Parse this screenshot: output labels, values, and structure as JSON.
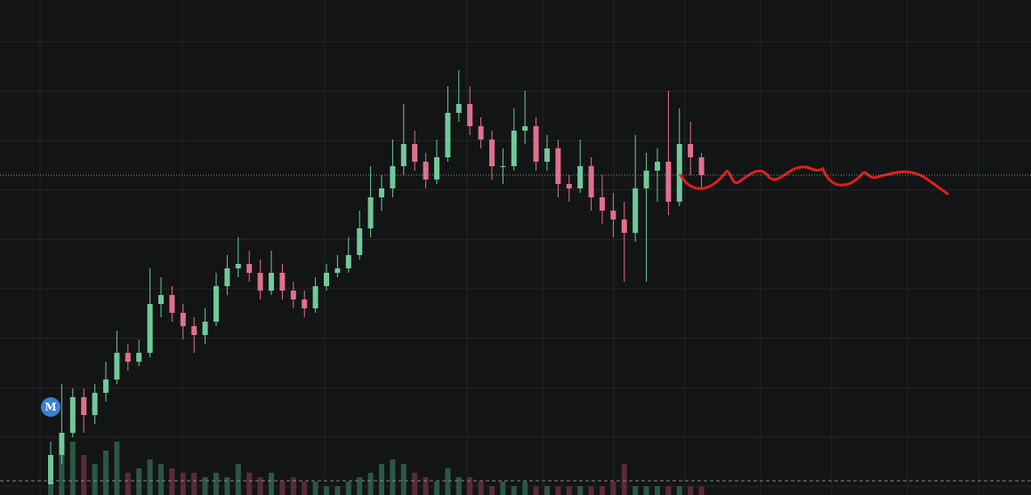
{
  "chart_data": {
    "type": "candlestick",
    "open": [
      12,
      45,
      70,
      110,
      90,
      115,
      130,
      160,
      150,
      160,
      215,
      225,
      205,
      190,
      180,
      195,
      235,
      255,
      260,
      250,
      230,
      250,
      230,
      220,
      210,
      235,
      250,
      255,
      270,
      300,
      335,
      345,
      370,
      395,
      375,
      355,
      380,
      430,
      440,
      415,
      400,
      370,
      370,
      410,
      415,
      375,
      390,
      350,
      345,
      370,
      335,
      320,
      310,
      295,
      345,
      365,
      375,
      330,
      395,
      380
    ],
    "high": [
      60,
      125,
      120,
      120,
      125,
      150,
      185,
      170,
      175,
      255,
      245,
      235,
      215,
      200,
      210,
      250,
      270,
      290,
      275,
      265,
      275,
      260,
      240,
      230,
      245,
      260,
      270,
      290,
      320,
      370,
      360,
      400,
      440,
      410,
      385,
      400,
      460,
      478,
      460,
      425,
      410,
      390,
      435,
      455,
      425,
      405,
      400,
      360,
      400,
      380,
      360,
      340,
      330,
      405,
      385,
      390,
      455,
      435,
      420,
      385
    ],
    "low": [
      12,
      35,
      65,
      70,
      80,
      105,
      125,
      140,
      145,
      155,
      200,
      195,
      175,
      160,
      170,
      190,
      225,
      245,
      240,
      220,
      225,
      220,
      210,
      200,
      205,
      230,
      245,
      250,
      265,
      290,
      320,
      335,
      360,
      365,
      345,
      350,
      375,
      420,
      405,
      390,
      355,
      350,
      365,
      395,
      365,
      365,
      335,
      330,
      340,
      320,
      305,
      290,
      240,
      285,
      240,
      330,
      315,
      325,
      360,
      345
    ],
    "close": [
      45,
      70,
      110,
      90,
      115,
      130,
      160,
      150,
      160,
      215,
      225,
      205,
      190,
      180,
      195,
      235,
      255,
      260,
      250,
      230,
      250,
      230,
      220,
      210,
      235,
      250,
      255,
      270,
      300,
      335,
      345,
      370,
      395,
      375,
      355,
      380,
      430,
      440,
      415,
      400,
      370,
      370,
      410,
      415,
      375,
      390,
      350,
      345,
      370,
      335,
      320,
      310,
      295,
      345,
      365,
      375,
      330,
      395,
      380,
      360
    ],
    "volume": [
      15,
      55,
      60,
      45,
      35,
      50,
      60,
      25,
      30,
      40,
      35,
      30,
      25,
      25,
      20,
      25,
      20,
      35,
      25,
      20,
      25,
      15,
      20,
      15,
      15,
      10,
      10,
      15,
      20,
      25,
      35,
      40,
      35,
      25,
      20,
      15,
      30,
      20,
      20,
      15,
      10,
      15,
      10,
      15,
      10,
      10,
      10,
      10,
      10,
      10,
      10,
      15,
      35,
      10,
      10,
      10,
      10,
      10,
      10,
      10
    ],
    "ylim": [
      0,
      557
    ],
    "up_color": "#6fc99a",
    "down_color": "#e0708c",
    "up_volume_color": "#2c5744",
    "down_volume_color": "#5a2a39",
    "marker_label": "M"
  }
}
